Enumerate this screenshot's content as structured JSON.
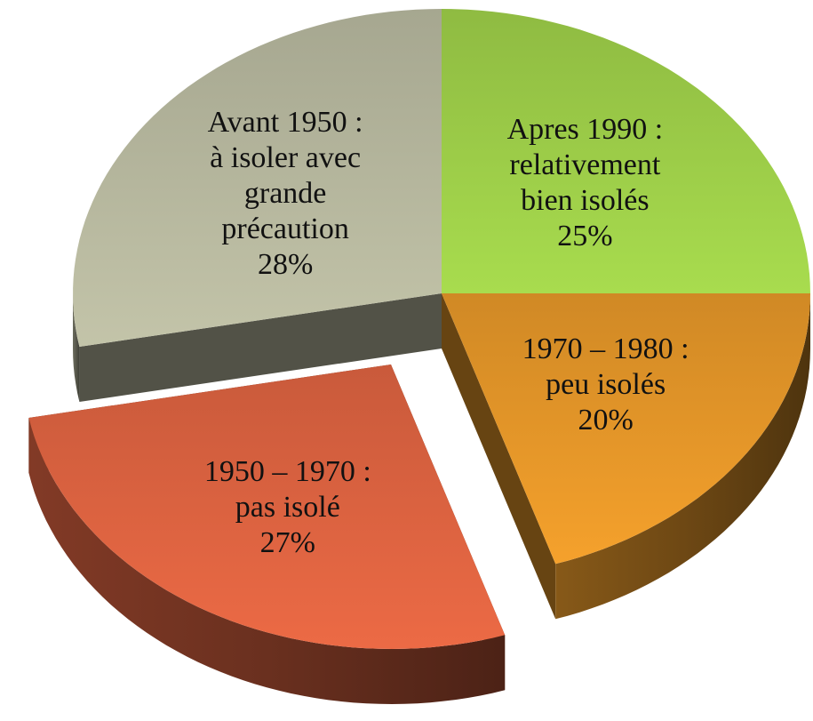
{
  "chart_data": {
    "type": "pie",
    "categories": [
      "Apres 1990 :\nrelativement\nbien isolés",
      "1970 – 1980 :\npeu isolés",
      "1950 – 1970 :\npas isolé",
      "Avant 1950 :\nà isoler avec\ngrande\nprécaution"
    ],
    "values": [
      25,
      20,
      27,
      28
    ],
    "value_labels": [
      "25%",
      "20%",
      "27%",
      "28%"
    ],
    "colors": [
      "#a8dc4e",
      "#f5a12c",
      "#ec6a45",
      "#c3c4a9"
    ],
    "exploded": 2
  }
}
